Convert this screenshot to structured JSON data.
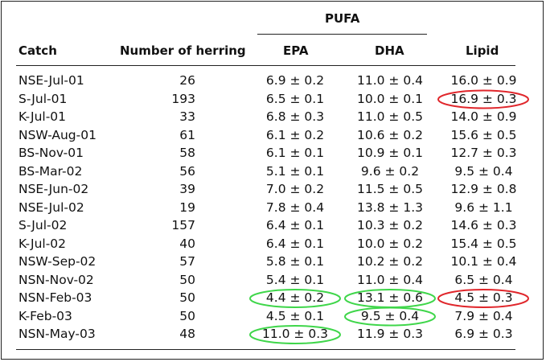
{
  "header": {
    "group_label": "PUFA",
    "columns": [
      "Catch",
      "Number of herring",
      "EPA",
      "DHA",
      "Lipid"
    ]
  },
  "rows": [
    {
      "catch": "NSE-Jul-01",
      "n": "26",
      "epa": "6.9 ± 0.2",
      "dha": "11.0 ± 0.4",
      "lipid": "16.0 ± 0.9"
    },
    {
      "catch": "S-Jul-01",
      "n": "193",
      "epa": "6.5 ± 0.1",
      "dha": "10.0 ± 0.1",
      "lipid": "16.9 ± 0.3"
    },
    {
      "catch": "K-Jul-01",
      "n": "33",
      "epa": "6.8 ± 0.3",
      "dha": "11.0 ± 0.5",
      "lipid": "14.0 ± 0.9"
    },
    {
      "catch": "NSW-Aug-01",
      "n": "61",
      "epa": "6.1 ± 0.2",
      "dha": "10.6 ± 0.2",
      "lipid": "15.6 ± 0.5"
    },
    {
      "catch": "BS-Nov-01",
      "n": "58",
      "epa": "6.1 ± 0.1",
      "dha": "10.9 ± 0.1",
      "lipid": "12.7 ± 0.3"
    },
    {
      "catch": "BS-Mar-02",
      "n": "56",
      "epa": "5.1 ± 0.1",
      "dha": "9.6 ± 0.2",
      "lipid": "9.5 ± 0.4"
    },
    {
      "catch": "NSE-Jun-02",
      "n": "39",
      "epa": "7.0 ± 0.2",
      "dha": "11.5 ± 0.5",
      "lipid": "12.9 ± 0.8"
    },
    {
      "catch": "NSE-Jul-02",
      "n": "19",
      "epa": "7.8 ± 0.4",
      "dha": "13.8 ± 1.3",
      "lipid": "9.6 ± 1.1"
    },
    {
      "catch": "S-Jul-02",
      "n": "157",
      "epa": "6.4 ± 0.1",
      "dha": "10.3 ± 0.2",
      "lipid": "14.6 ± 0.3"
    },
    {
      "catch": "K-Jul-02",
      "n": "40",
      "epa": "6.4 ± 0.1",
      "dha": "10.0 ± 0.2",
      "lipid": "15.4 ± 0.5"
    },
    {
      "catch": "NSW-Sep-02",
      "n": "57",
      "epa": "5.8 ± 0.1",
      "dha": "10.2 ± 0.2",
      "lipid": "10.1 ± 0.4"
    },
    {
      "catch": "NSN-Nov-02",
      "n": "50",
      "epa": "5.4 ± 0.1",
      "dha": "11.0 ± 0.4",
      "lipid": "6.5 ± 0.4"
    },
    {
      "catch": "NSN-Feb-03",
      "n": "50",
      "epa": "4.4 ± 0.2",
      "dha": "13.1 ± 0.6",
      "lipid": "4.5 ± 0.3"
    },
    {
      "catch": "K-Feb-03",
      "n": "50",
      "epa": "4.5 ± 0.1",
      "dha": "9.5 ± 0.4",
      "lipid": "7.9 ± 0.4"
    },
    {
      "catch": "NSN-May-03",
      "n": "48",
      "epa": "11.0 ± 0.3",
      "dha": "11.9 ± 0.3",
      "lipid": "6.9 ± 0.3"
    }
  ],
  "highlights": [
    {
      "row": 1,
      "col": "lipid",
      "color": "#e0262b"
    },
    {
      "row": 12,
      "col": "epa",
      "color": "#3fd64a"
    },
    {
      "row": 12,
      "col": "dha",
      "color": "#3fd64a"
    },
    {
      "row": 12,
      "col": "lipid",
      "color": "#e0262b"
    },
    {
      "row": 13,
      "col": "dha",
      "color": "#3fd64a"
    },
    {
      "row": 14,
      "col": "epa",
      "color": "#3fd64a"
    }
  ]
}
